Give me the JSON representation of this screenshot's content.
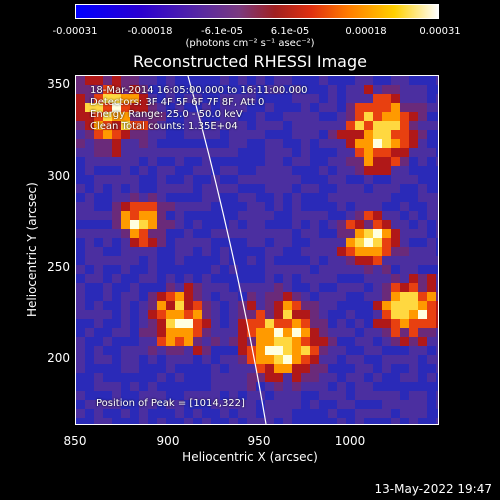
{
  "colorbar": {
    "ticks": [
      "-0.00031",
      "-0.00018",
      "-6.1e-05",
      "6.1e-05",
      "0.00018",
      "0.00031"
    ],
    "unit": "(photons cm⁻² s⁻¹ asec⁻²)"
  },
  "title": "Reconstructed RHESSI Image",
  "annotations": {
    "line1": "18-Mar-2014 16:05:00.000 to 16:11:00.000",
    "line2": "Detectors: 3F 4F 5F 6F 7F 8F, Att 0",
    "line3": "Energy Range: 25.0 - 50.0 keV",
    "line4": "Clean    Total counts: 1.35E+04",
    "peak": "Position of Peak = [1014,322]"
  },
  "axes": {
    "xlabel": "Heliocentric X (arcsec)",
    "ylabel": "Heliocentric Y (arcsec)",
    "xticks": [
      "850",
      "900",
      "950",
      "1000"
    ],
    "yticks": [
      "350",
      "300",
      "250",
      "200"
    ],
    "xlim": [
      850,
      1040
    ],
    "ylim": [
      163,
      355
    ]
  },
  "datestamp": "13-May-2022 19:47",
  "colors": {
    "background": "#000000",
    "field_low": "#4b2fa0",
    "field_high": "#ffffff"
  }
}
